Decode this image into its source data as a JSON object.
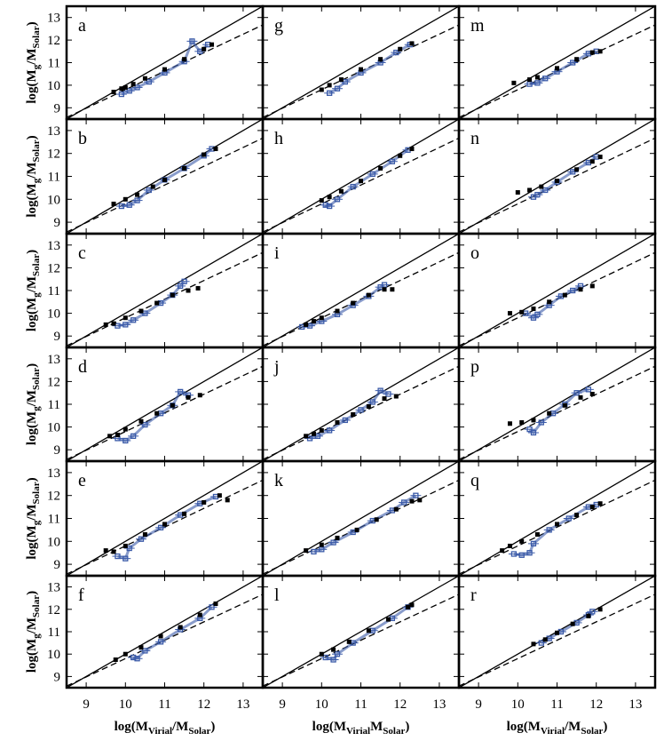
{
  "figure": {
    "rows": 6,
    "cols": 3,
    "panel_letters": [
      [
        "a",
        "g",
        "m"
      ],
      [
        "b",
        "h",
        "n"
      ],
      [
        "c",
        "i",
        "o"
      ],
      [
        "d",
        "j",
        "p"
      ],
      [
        "e",
        "k",
        "q"
      ],
      [
        "f",
        "l",
        "r"
      ]
    ],
    "colors": {
      "black_series": "#000000",
      "blue_series": "#3a5aa8",
      "lines": "#000000"
    }
  },
  "chart_data": {
    "type": "scatter",
    "xlabels": [
      {
        "main": "log(M",
        "sub": "Virial",
        "mid": "/M",
        "sub2": "Solar",
        "end": ")"
      },
      {
        "main": "log(M",
        "sub": "Virial",
        "mid": "M",
        "sub2": "Solar",
        "end": ")"
      },
      {
        "main": "log(M",
        "sub": "Virial",
        "mid": "/M",
        "sub2": "Solar",
        "end": ")"
      }
    ],
    "ylabel": {
      "main": "log(M",
      "sub": "g",
      "mid": "/M",
      "sub2": "Solar",
      "end": ")"
    },
    "xlim": [
      8.5,
      13.5
    ],
    "ylim": [
      8.5,
      13.5
    ],
    "xticks": [
      "9",
      "10",
      "11",
      "12",
      "13"
    ],
    "yticks": [
      "9",
      "10",
      "11",
      "12",
      "13"
    ],
    "reference_lines": [
      {
        "style": "solid",
        "slope": 1.0,
        "intercept": 0.0
      },
      {
        "style": "dashed",
        "slope": 0.82,
        "intercept": 1.6
      }
    ],
    "panels": [
      {
        "letter": "a",
        "black": [
          [
            9.7,
            9.7
          ],
          [
            9.9,
            9.85
          ],
          [
            10.0,
            9.9
          ],
          [
            10.2,
            10.05
          ],
          [
            10.5,
            10.3
          ],
          [
            11.0,
            10.7
          ],
          [
            11.5,
            11.15
          ],
          [
            12.0,
            11.6
          ],
          [
            12.2,
            11.8
          ]
        ],
        "blue": [
          [
            9.9,
            9.6
          ],
          [
            10.1,
            9.75
          ],
          [
            10.3,
            9.9
          ],
          [
            10.6,
            10.15
          ],
          [
            11.0,
            10.55
          ],
          [
            11.5,
            11.05
          ],
          [
            11.9,
            11.5
          ],
          [
            11.7,
            11.95
          ],
          [
            12.1,
            11.8
          ]
        ]
      },
      {
        "letter": "b",
        "black": [
          [
            9.7,
            9.8
          ],
          [
            10.0,
            10.0
          ],
          [
            10.3,
            10.2
          ],
          [
            10.7,
            10.55
          ],
          [
            11.0,
            10.85
          ],
          [
            11.5,
            11.35
          ],
          [
            12.0,
            11.95
          ],
          [
            12.3,
            12.2
          ]
        ],
        "blue": [
          [
            9.9,
            9.7
          ],
          [
            10.1,
            9.75
          ],
          [
            10.3,
            9.95
          ],
          [
            10.6,
            10.4
          ],
          [
            11.0,
            10.85
          ],
          [
            11.5,
            11.35
          ],
          [
            12.0,
            11.9
          ],
          [
            12.2,
            12.2
          ]
        ]
      },
      {
        "letter": "c",
        "black": [
          [
            9.5,
            9.5
          ],
          [
            9.7,
            9.55
          ],
          [
            10.0,
            9.8
          ],
          [
            10.4,
            10.1
          ],
          [
            10.8,
            10.45
          ],
          [
            11.2,
            10.8
          ],
          [
            11.6,
            11.0
          ],
          [
            11.85,
            11.1
          ]
        ],
        "blue": [
          [
            9.8,
            9.45
          ],
          [
            10.0,
            9.5
          ],
          [
            10.2,
            9.7
          ],
          [
            10.5,
            10.0
          ],
          [
            10.9,
            10.45
          ],
          [
            11.2,
            10.8
          ],
          [
            11.4,
            11.2
          ],
          [
            11.5,
            11.4
          ]
        ]
      },
      {
        "letter": "d",
        "black": [
          [
            9.6,
            9.6
          ],
          [
            9.8,
            9.65
          ],
          [
            10.0,
            9.9
          ],
          [
            10.4,
            10.25
          ],
          [
            10.8,
            10.6
          ],
          [
            11.2,
            10.95
          ],
          [
            11.6,
            11.3
          ],
          [
            11.9,
            11.4
          ]
        ],
        "blue": [
          [
            9.8,
            9.5
          ],
          [
            10.0,
            9.4
          ],
          [
            10.2,
            9.6
          ],
          [
            10.5,
            10.1
          ],
          [
            10.9,
            10.6
          ],
          [
            11.2,
            10.95
          ],
          [
            11.4,
            11.55
          ],
          [
            11.6,
            11.4
          ]
        ]
      },
      {
        "letter": "e",
        "black": [
          [
            9.5,
            9.6
          ],
          [
            9.7,
            9.55
          ],
          [
            10.0,
            9.8
          ],
          [
            10.5,
            10.3
          ],
          [
            11.0,
            10.75
          ],
          [
            11.5,
            11.2
          ],
          [
            12.0,
            11.7
          ],
          [
            12.4,
            12.0
          ],
          [
            12.6,
            11.8
          ]
        ],
        "blue": [
          [
            9.8,
            9.35
          ],
          [
            10.0,
            9.25
          ],
          [
            10.1,
            9.7
          ],
          [
            10.4,
            10.1
          ],
          [
            10.9,
            10.6
          ],
          [
            11.4,
            11.15
          ],
          [
            11.9,
            11.65
          ],
          [
            12.3,
            11.95
          ]
        ]
      },
      {
        "letter": "f",
        "black": [
          [
            9.75,
            9.75
          ],
          [
            10.0,
            10.0
          ],
          [
            10.4,
            10.3
          ],
          [
            10.9,
            10.8
          ],
          [
            11.4,
            11.2
          ],
          [
            11.9,
            11.75
          ],
          [
            12.3,
            12.25
          ]
        ],
        "blue": [
          [
            10.2,
            9.85
          ],
          [
            10.3,
            9.8
          ],
          [
            10.5,
            10.15
          ],
          [
            10.9,
            10.55
          ],
          [
            11.4,
            11.1
          ],
          [
            11.9,
            11.6
          ],
          [
            12.2,
            12.1
          ]
        ]
      },
      {
        "letter": "g",
        "black": [
          [
            10.0,
            9.8
          ],
          [
            10.2,
            10.0
          ],
          [
            10.5,
            10.25
          ],
          [
            11.0,
            10.7
          ],
          [
            11.5,
            11.15
          ],
          [
            12.0,
            11.6
          ],
          [
            12.3,
            11.85
          ]
        ],
        "blue": [
          [
            10.2,
            9.65
          ],
          [
            10.4,
            9.85
          ],
          [
            10.6,
            10.15
          ],
          [
            11.0,
            10.55
          ],
          [
            11.5,
            11.0
          ],
          [
            11.9,
            11.45
          ],
          [
            12.25,
            11.8
          ]
        ]
      },
      {
        "letter": "h",
        "black": [
          [
            10.0,
            9.95
          ],
          [
            10.2,
            10.1
          ],
          [
            10.5,
            10.35
          ],
          [
            11.0,
            10.8
          ],
          [
            11.5,
            11.35
          ],
          [
            12.0,
            11.9
          ],
          [
            12.3,
            12.2
          ]
        ],
        "blue": [
          [
            10.1,
            9.75
          ],
          [
            10.2,
            9.7
          ],
          [
            10.4,
            10.0
          ],
          [
            10.8,
            10.55
          ],
          [
            11.3,
            11.1
          ],
          [
            11.8,
            11.65
          ],
          [
            12.2,
            12.15
          ]
        ]
      },
      {
        "letter": "i",
        "black": [
          [
            9.6,
            9.5
          ],
          [
            9.8,
            9.65
          ],
          [
            10.0,
            9.8
          ],
          [
            10.4,
            10.1
          ],
          [
            10.8,
            10.45
          ],
          [
            11.2,
            10.8
          ],
          [
            11.6,
            11.05
          ],
          [
            11.8,
            11.05
          ]
        ],
        "blue": [
          [
            9.5,
            9.4
          ],
          [
            9.7,
            9.45
          ],
          [
            10.0,
            9.65
          ],
          [
            10.4,
            9.95
          ],
          [
            10.8,
            10.35
          ],
          [
            11.2,
            10.75
          ],
          [
            11.5,
            11.15
          ],
          [
            11.6,
            11.25
          ]
        ]
      },
      {
        "letter": "j",
        "black": [
          [
            9.6,
            9.6
          ],
          [
            9.8,
            9.7
          ],
          [
            10.0,
            9.85
          ],
          [
            10.4,
            10.2
          ],
          [
            10.8,
            10.55
          ],
          [
            11.2,
            10.9
          ],
          [
            11.6,
            11.25
          ],
          [
            11.9,
            11.35
          ]
        ],
        "blue": [
          [
            9.7,
            9.5
          ],
          [
            9.9,
            9.6
          ],
          [
            10.2,
            9.85
          ],
          [
            10.6,
            10.3
          ],
          [
            11.0,
            10.75
          ],
          [
            11.3,
            11.1
          ],
          [
            11.5,
            11.6
          ],
          [
            11.7,
            11.45
          ]
        ]
      },
      {
        "letter": "k",
        "black": [
          [
            9.6,
            9.6
          ],
          [
            10.0,
            9.85
          ],
          [
            10.4,
            10.15
          ],
          [
            10.9,
            10.5
          ],
          [
            11.4,
            10.95
          ],
          [
            11.9,
            11.4
          ],
          [
            12.3,
            11.75
          ],
          [
            12.5,
            11.8
          ]
        ],
        "blue": [
          [
            9.8,
            9.55
          ],
          [
            10.0,
            9.65
          ],
          [
            10.3,
            9.95
          ],
          [
            10.8,
            10.4
          ],
          [
            11.3,
            10.9
          ],
          [
            11.8,
            11.35
          ],
          [
            12.1,
            11.7
          ],
          [
            12.4,
            12.0
          ]
        ]
      },
      {
        "letter": "l",
        "black": [
          [
            10.0,
            10.0
          ],
          [
            10.3,
            10.2
          ],
          [
            10.7,
            10.55
          ],
          [
            11.2,
            11.05
          ],
          [
            11.7,
            11.55
          ],
          [
            12.2,
            12.1
          ],
          [
            12.3,
            12.2
          ]
        ],
        "blue": [
          [
            10.1,
            9.85
          ],
          [
            10.3,
            9.75
          ],
          [
            10.4,
            10.0
          ],
          [
            10.8,
            10.5
          ],
          [
            11.3,
            11.05
          ],
          [
            11.8,
            11.6
          ],
          [
            12.2,
            12.1
          ]
        ]
      },
      {
        "letter": "m",
        "black": [
          [
            9.9,
            10.1
          ],
          [
            10.3,
            10.25
          ],
          [
            10.5,
            10.35
          ],
          [
            11.0,
            10.75
          ],
          [
            11.5,
            11.15
          ],
          [
            11.9,
            11.45
          ],
          [
            12.1,
            11.5
          ]
        ],
        "blue": [
          [
            10.3,
            10.05
          ],
          [
            10.5,
            10.1
          ],
          [
            10.7,
            10.3
          ],
          [
            11.0,
            10.6
          ],
          [
            11.4,
            11.0
          ],
          [
            11.8,
            11.4
          ],
          [
            12.0,
            11.5
          ]
        ]
      },
      {
        "letter": "n",
        "black": [
          [
            10.0,
            10.3
          ],
          [
            10.3,
            10.4
          ],
          [
            10.6,
            10.55
          ],
          [
            11.0,
            10.8
          ],
          [
            11.5,
            11.3
          ],
          [
            11.9,
            11.65
          ],
          [
            12.1,
            11.85
          ]
        ],
        "blue": [
          [
            10.4,
            10.1
          ],
          [
            10.5,
            10.2
          ],
          [
            10.7,
            10.4
          ],
          [
            11.0,
            10.75
          ],
          [
            11.4,
            11.2
          ],
          [
            11.8,
            11.6
          ],
          [
            12.0,
            11.85
          ]
        ]
      },
      {
        "letter": "o",
        "black": [
          [
            9.8,
            10.0
          ],
          [
            10.1,
            10.05
          ],
          [
            10.4,
            10.2
          ],
          [
            10.8,
            10.5
          ],
          [
            11.2,
            10.8
          ],
          [
            11.6,
            11.05
          ],
          [
            11.9,
            11.2
          ]
        ],
        "blue": [
          [
            10.2,
            10.0
          ],
          [
            10.4,
            9.8
          ],
          [
            10.5,
            9.95
          ],
          [
            10.8,
            10.35
          ],
          [
            11.1,
            10.75
          ],
          [
            11.4,
            11.0
          ],
          [
            11.6,
            11.2
          ]
        ]
      },
      {
        "letter": "p",
        "black": [
          [
            9.8,
            10.15
          ],
          [
            10.1,
            10.2
          ],
          [
            10.4,
            10.3
          ],
          [
            10.8,
            10.6
          ],
          [
            11.2,
            10.95
          ],
          [
            11.6,
            11.3
          ],
          [
            11.9,
            11.45
          ]
        ],
        "blue": [
          [
            10.3,
            9.9
          ],
          [
            10.4,
            9.75
          ],
          [
            10.6,
            10.2
          ],
          [
            10.9,
            10.6
          ],
          [
            11.2,
            11.0
          ],
          [
            11.5,
            11.5
          ],
          [
            11.8,
            11.65
          ]
        ]
      },
      {
        "letter": "q",
        "black": [
          [
            9.6,
            9.6
          ],
          [
            9.8,
            9.8
          ],
          [
            10.1,
            10.0
          ],
          [
            10.5,
            10.3
          ],
          [
            11.0,
            10.75
          ],
          [
            11.5,
            11.15
          ],
          [
            11.9,
            11.5
          ],
          [
            12.1,
            11.65
          ]
        ],
        "blue": [
          [
            9.9,
            9.45
          ],
          [
            10.1,
            9.4
          ],
          [
            10.3,
            9.5
          ],
          [
            10.4,
            9.9
          ],
          [
            10.8,
            10.5
          ],
          [
            11.3,
            11.0
          ],
          [
            11.8,
            11.5
          ],
          [
            12.0,
            11.6
          ]
        ]
      },
      {
        "letter": "r",
        "black": [
          [
            10.4,
            10.45
          ],
          [
            10.7,
            10.65
          ],
          [
            11.0,
            10.95
          ],
          [
            11.4,
            11.35
          ],
          [
            11.8,
            11.7
          ],
          [
            12.1,
            12.0
          ]
        ],
        "blue": [
          [
            10.6,
            10.5
          ],
          [
            10.8,
            10.7
          ],
          [
            11.1,
            11.0
          ],
          [
            11.5,
            11.4
          ],
          [
            11.8,
            11.75
          ],
          [
            11.9,
            11.9
          ]
        ]
      }
    ]
  }
}
